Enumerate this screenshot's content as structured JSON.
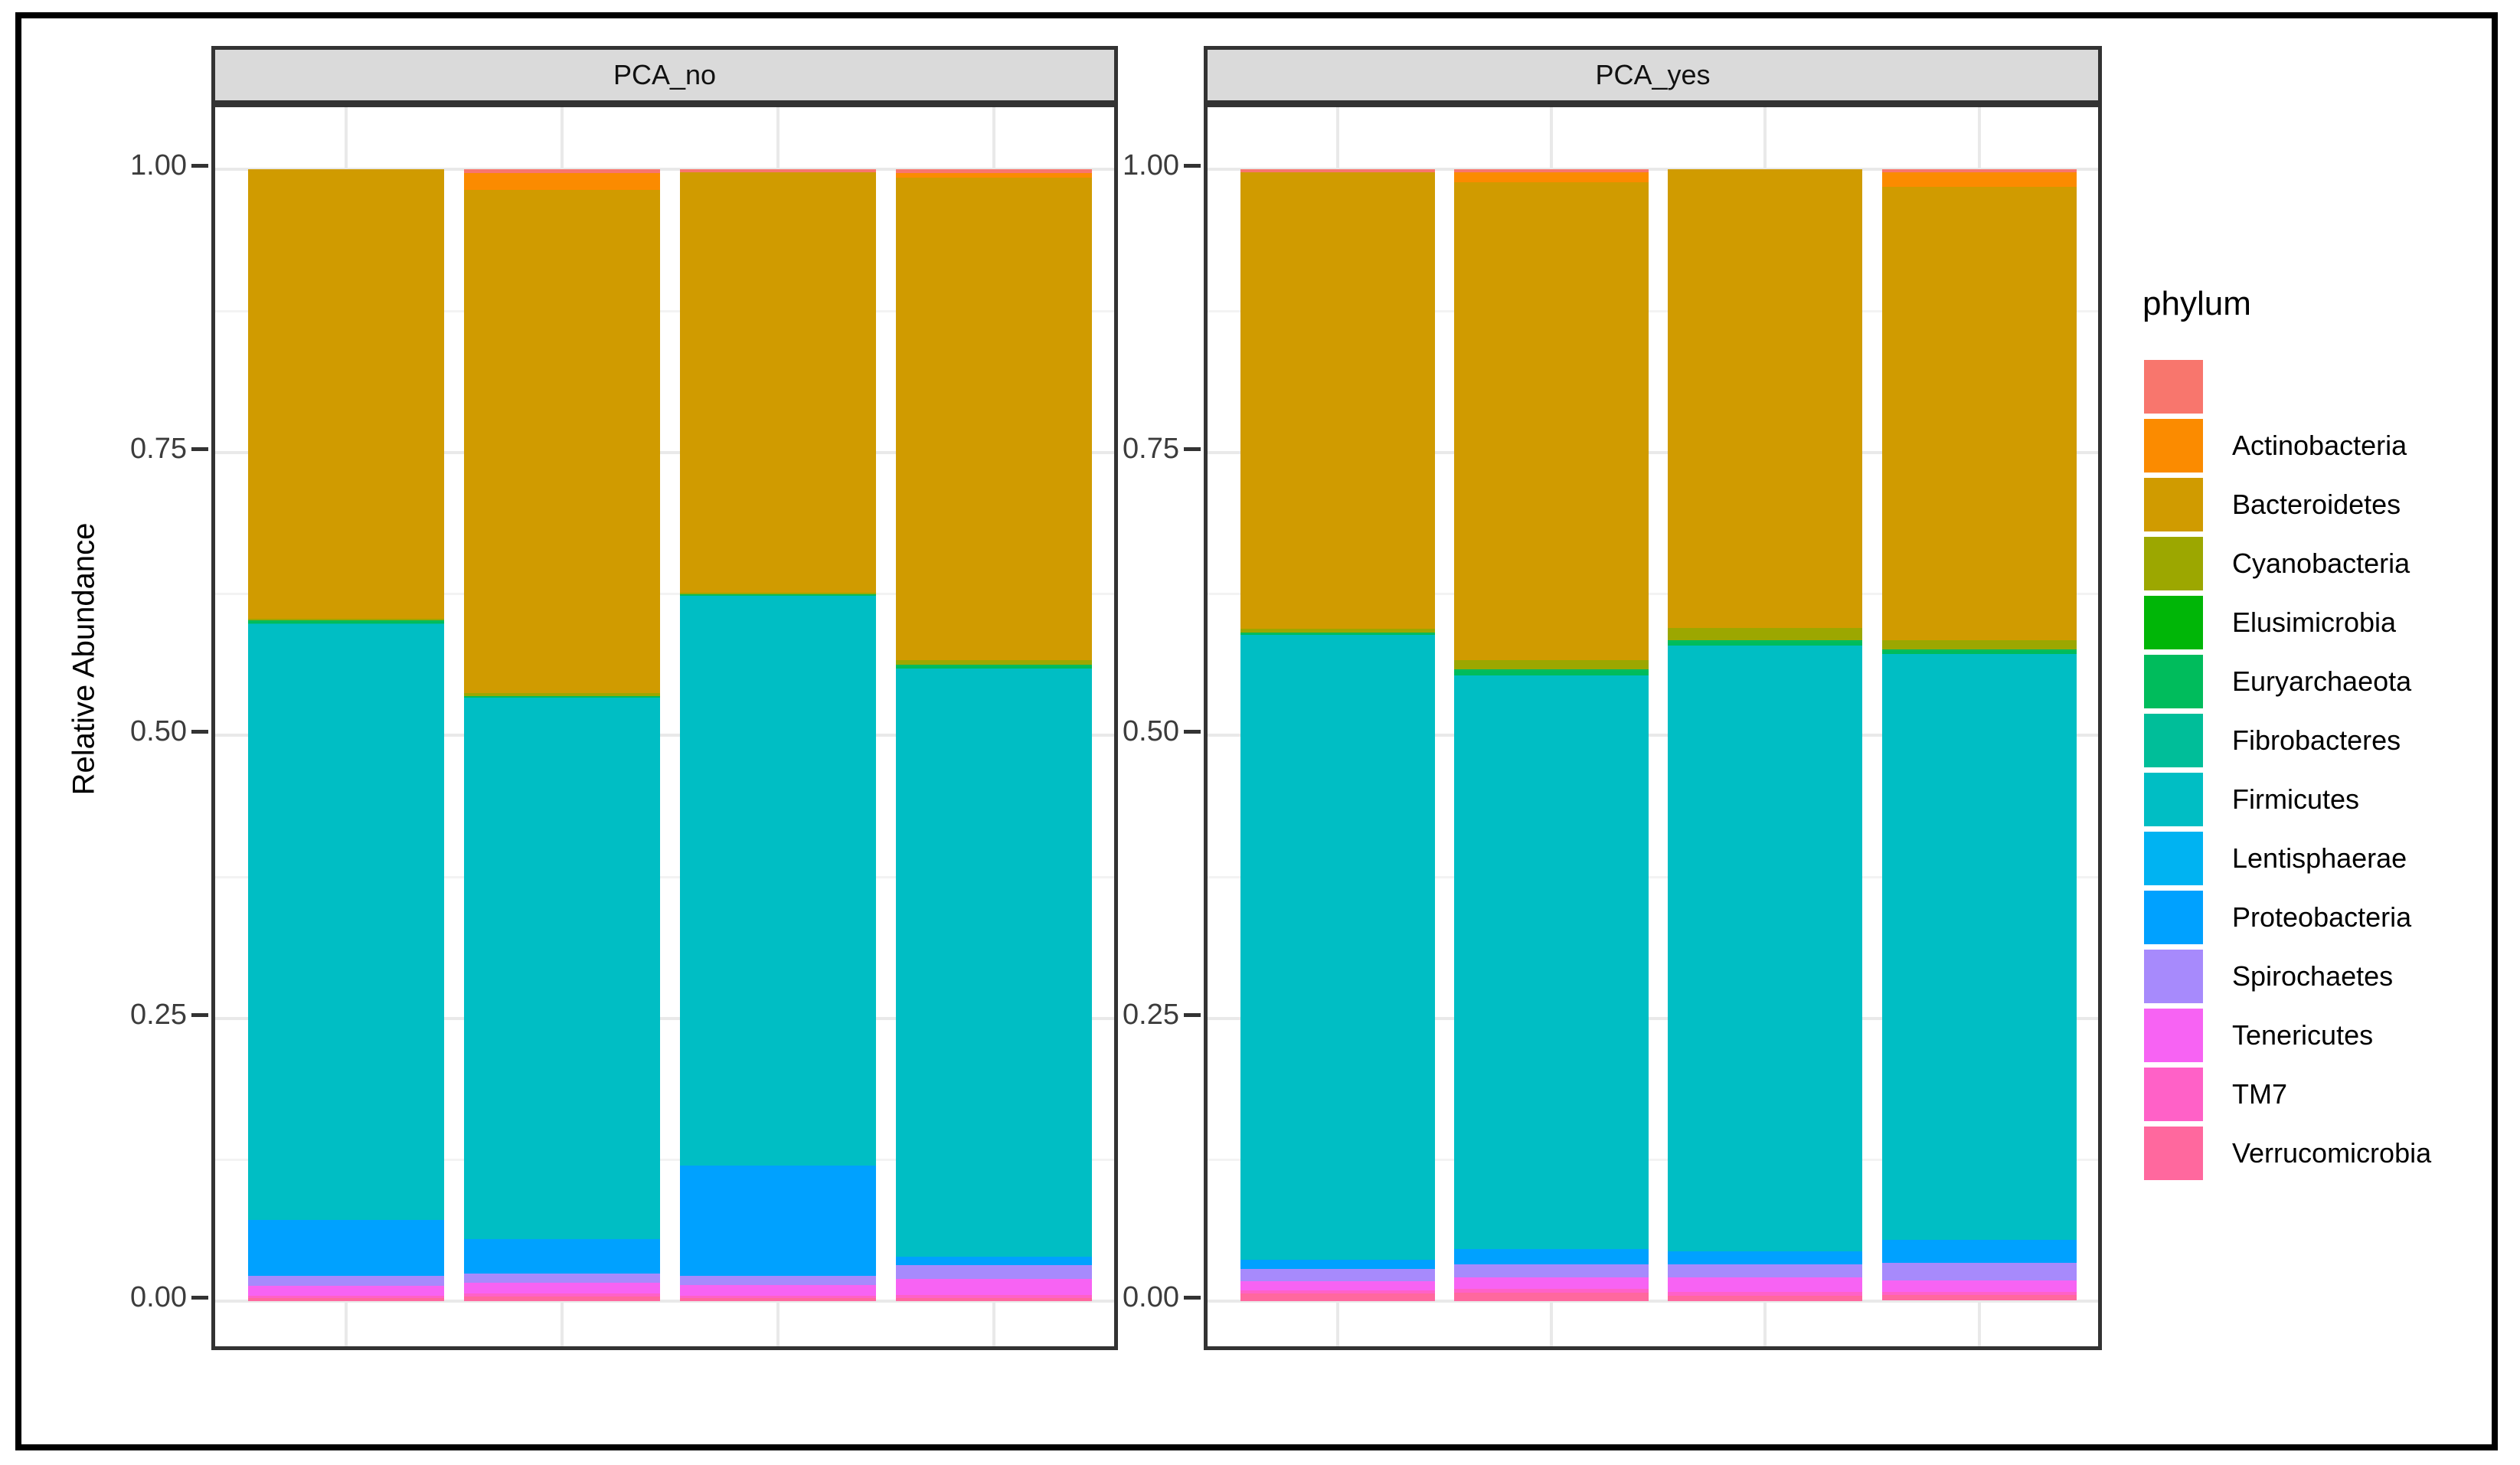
{
  "figure": {
    "background": "#ffffff",
    "outer_border_color": "#000000",
    "panel_border_color": "#333333",
    "strip_background": "#dadada",
    "gridline_major_color": "#e9e9e9",
    "gridline_minor_color": "#f3f3f3"
  },
  "y_axis": {
    "title": "Relative Abundance",
    "tick_labels": [
      "1.00",
      "0.75",
      "0.50",
      "0.25",
      "0.00"
    ],
    "tick_values": [
      1.0,
      0.75,
      0.5,
      0.25,
      0.0
    ]
  },
  "legend": {
    "title": "phylum",
    "entries": [
      {
        "label": "",
        "color": "#F8766D"
      },
      {
        "label": "Actinobacteria",
        "color": "#FB8B00"
      },
      {
        "label": "Bacteroidetes",
        "color": "#D09B00"
      },
      {
        "label": "Cyanobacteria",
        "color": "#9CA700"
      },
      {
        "label": "Elusimicrobia",
        "color": "#00B607"
      },
      {
        "label": "Euryarchaeota",
        "color": "#00BC5C"
      },
      {
        "label": "Fibrobacteres",
        "color": "#00BE99"
      },
      {
        "label": "Firmicutes",
        "color": "#00BEC4"
      },
      {
        "label": "Lentisphaerae",
        "color": "#00B3F2"
      },
      {
        "label": "Proteobacteria",
        "color": "#00A1FF"
      },
      {
        "label": "Spirochaetes",
        "color": "#A78AFC"
      },
      {
        "label": "Tenericutes",
        "color": "#F763F3"
      },
      {
        "label": "TM7",
        "color": "#FF61C7"
      },
      {
        "label": "Verrucomicrobia",
        "color": "#FF689E"
      }
    ]
  },
  "chart_data": {
    "type": "bar",
    "stacked": true,
    "ylabel": "Relative Abundance",
    "ylim": [
      0,
      1
    ],
    "grid": true,
    "legend_position": "right",
    "phyla_top_to_bottom": [
      "",
      "Actinobacteria",
      "Bacteroidetes",
      "Cyanobacteria",
      "Elusimicrobia",
      "Euryarchaeota",
      "Fibrobacteres",
      "Firmicutes",
      "Lentisphaerae",
      "Proteobacteria",
      "Spirochaetes",
      "Tenericutes",
      "TM7",
      "Verrucomicrobia"
    ],
    "facets": [
      {
        "label": "PCA_no",
        "bars": [
          [
            0,
            0,
            0.397,
            0.0015,
            0,
            0.0025,
            0.001,
            0.526,
            0,
            0.05,
            0.0085,
            0.0085,
            0.002,
            0.003
          ],
          [
            0.0035,
            0.0145,
            0.445,
            0.0025,
            0,
            0.0015,
            0,
            0.478,
            0,
            0.0304,
            0.0082,
            0.0094,
            0.0028,
            0.004
          ],
          [
            0.003,
            0,
            0.371,
            0.0015,
            0,
            0.0015,
            0,
            0.503,
            0,
            0.098,
            0.008,
            0.0095,
            0.002,
            0.0025
          ],
          [
            0.0035,
            0.004,
            0.4265,
            0.004,
            0,
            0.003,
            0,
            0.5195,
            0,
            0.0074,
            0.0122,
            0.0146,
            0.0025,
            0.0025
          ]
        ]
      },
      {
        "label": "PCA_yes",
        "bars": [
          [
            0.003,
            0,
            0.403,
            0.0035,
            0,
            0.002,
            0,
            0.552,
            0,
            0.0081,
            0.0108,
            0.0081,
            0.003,
            0.0065
          ],
          [
            0.0025,
            0.009,
            0.4225,
            0.008,
            0,
            0.0055,
            0,
            0.5065,
            0,
            0.0135,
            0.0115,
            0.0102,
            0.0035,
            0.0073
          ],
          [
            0,
            0,
            0.405,
            0.011,
            0,
            0.005,
            0,
            0.535,
            0,
            0.0115,
            0.0115,
            0.013,
            0.003,
            0.005
          ],
          [
            0.0025,
            0.013,
            0.4005,
            0.008,
            0,
            0.0045,
            0,
            0.5177,
            0,
            0.0203,
            0.0149,
            0.0102,
            0.003,
            0.0044
          ]
        ]
      }
    ]
  }
}
